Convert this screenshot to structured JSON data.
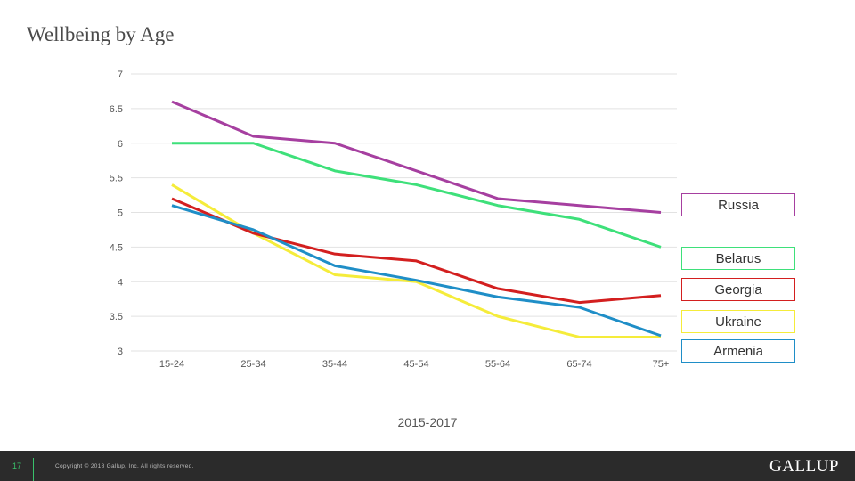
{
  "slide": {
    "title": "Wellbeing by Age",
    "page_number": "17",
    "copyright": "Copyright © 2018 Gallup, Inc. All rights reserved.",
    "logo_text": "GALLUP",
    "brand_color": "#39c26b",
    "footer_color": "#2b2b2b"
  },
  "chart_data": {
    "type": "line",
    "title": "Wellbeing by Age",
    "xlabel": "2015-2017",
    "ylabel": "",
    "categories": [
      "15-24",
      "25-34",
      "35-44",
      "45-54",
      "55-64",
      "65-74",
      "75+"
    ],
    "ylim": [
      3,
      7
    ],
    "yticks": [
      "7",
      "6.5",
      "6",
      "5.5",
      "5",
      "4.5",
      "4",
      "3.5",
      "3"
    ],
    "grid": true,
    "legend_placement": "right",
    "series": [
      {
        "name": "Russia",
        "color": "#a63fa0",
        "values": [
          6.6,
          6.1,
          6.0,
          5.6,
          5.2,
          5.1,
          5.0
        ]
      },
      {
        "name": "Belarus",
        "color": "#3ee07a",
        "values": [
          6.0,
          6.0,
          5.6,
          5.4,
          5.1,
          4.9,
          4.5
        ]
      },
      {
        "name": "Georgia",
        "color": "#d31f1f",
        "values": [
          5.2,
          4.7,
          4.4,
          4.3,
          3.9,
          3.7,
          3.8
        ]
      },
      {
        "name": "Ukraine",
        "color": "#f5ec3a",
        "values": [
          5.4,
          4.7,
          4.1,
          4.0,
          3.5,
          3.2,
          3.2
        ]
      },
      {
        "name": "Armenia",
        "color": "#1f8ec7",
        "values": [
          5.1,
          4.75,
          4.23,
          4.02,
          3.78,
          3.63,
          3.22
        ]
      }
    ]
  }
}
